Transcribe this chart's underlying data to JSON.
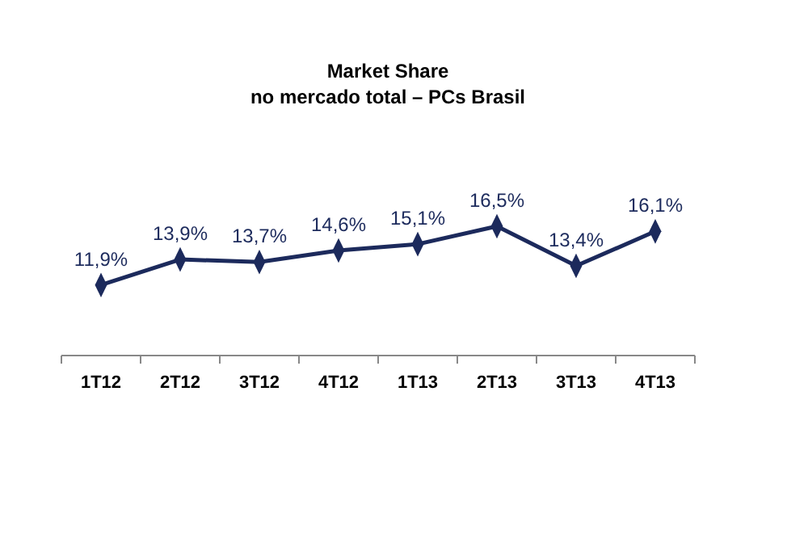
{
  "chart_data": {
    "type": "line",
    "title": "Market Share",
    "subtitle": "no mercado total – PCs Brasil",
    "categories": [
      "1T12",
      "2T12",
      "3T12",
      "4T12",
      "1T13",
      "2T13",
      "3T13",
      "4T13"
    ],
    "series": [
      {
        "color": "#1c2a5c",
        "values": [
          11.9,
          13.9,
          13.7,
          14.6,
          15.1,
          16.5,
          13.4,
          16.1
        ],
        "value_labels": [
          "11,9%",
          "13,9%",
          "13,7%",
          "14,6%",
          "15,1%",
          "16,5%",
          "13,4%",
          "16,1%"
        ]
      }
    ],
    "tick_labels": "x",
    "marker": "diamond",
    "line_style": "solid"
  }
}
